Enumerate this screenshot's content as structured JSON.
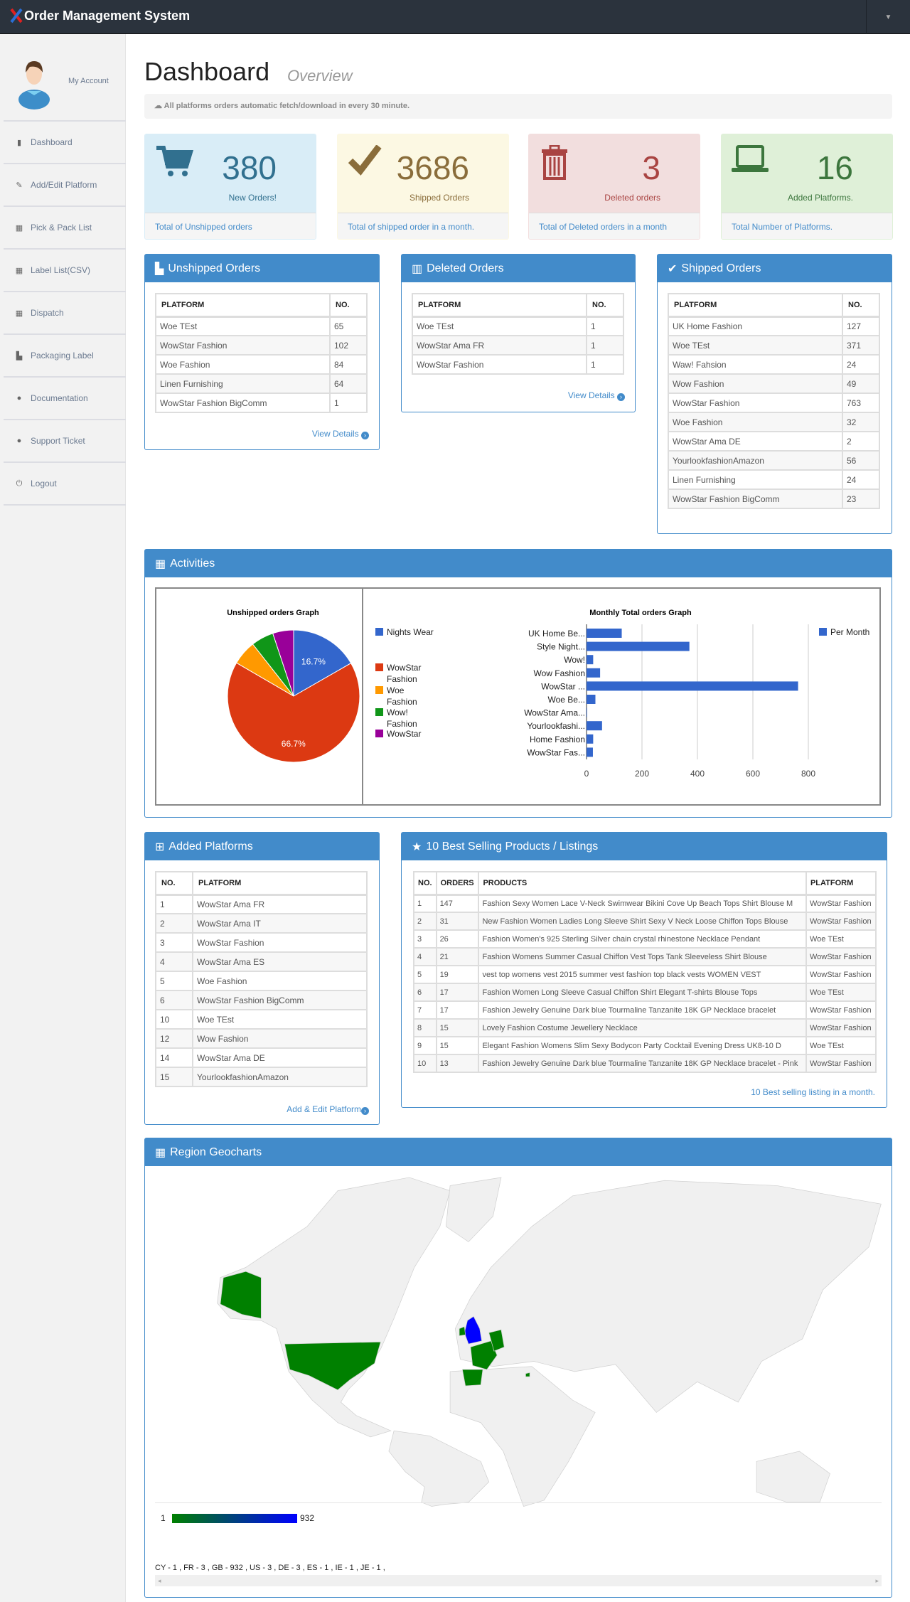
{
  "app": {
    "title": "Order Management System",
    "dropdown_icon": "caret-down-icon"
  },
  "sidebar": {
    "account_label": "My Account",
    "items": [
      {
        "label": "Dashboard",
        "icon": "bar-chart-icon"
      },
      {
        "label": "Add/Edit Platform",
        "icon": "edit-icon"
      },
      {
        "label": "Pick & Pack List",
        "icon": "grid-icon"
      },
      {
        "label": "Label List(CSV)",
        "icon": "grid-icon"
      },
      {
        "label": "Dispatch",
        "icon": "grid-icon"
      },
      {
        "label": "Packaging Label",
        "icon": "file-icon"
      },
      {
        "label": "Documentation",
        "icon": "user-icon"
      },
      {
        "label": "Support Ticket",
        "icon": "user-icon"
      },
      {
        "label": "Logout",
        "icon": "power-icon"
      }
    ]
  },
  "page": {
    "title": "Dashboard",
    "subtitle": "Overview",
    "notice": "All platforms orders automatic fetch/download in every 30 minute."
  },
  "stats": [
    {
      "value": "380",
      "label": "New Orders!",
      "footer": "Total of Unshipped orders",
      "color": "#31708f",
      "bg": "#d9edf7",
      "icon": "cart-icon"
    },
    {
      "value": "3686",
      "label": "Shipped Orders",
      "footer": "Total of shipped order in a month.",
      "color": "#8a6d3b",
      "bg": "#fcf8e3",
      "icon": "check-icon"
    },
    {
      "value": "3",
      "label": "Deleted orders",
      "footer": "Total of Deleted orders in a month",
      "color": "#a94442",
      "bg": "#f2dede",
      "icon": "trash-icon"
    },
    {
      "value": "16",
      "label": "Added Platforms.",
      "footer": "Total Number of Platforms.",
      "color": "#3c763d",
      "bg": "#dff0d8",
      "icon": "laptop-icon"
    }
  ],
  "unshipped": {
    "title": "Unshipped Orders",
    "headers": [
      "PLATFORM",
      "NO."
    ],
    "rows": [
      [
        "Woe TEst",
        "65"
      ],
      [
        "WowStar Fashion",
        "102"
      ],
      [
        "Woe Fashion",
        "84"
      ],
      [
        "Linen Furnishing",
        "64"
      ],
      [
        "WowStar Fashion BigComm",
        "1"
      ]
    ],
    "link": "View Details"
  },
  "deleted": {
    "title": "Deleted Orders",
    "headers": [
      "PLATFORM",
      "NO."
    ],
    "rows": [
      [
        "Woe TEst",
        "1"
      ],
      [
        "WowStar Ama FR",
        "1"
      ],
      [
        "WowStar Fashion",
        "1"
      ]
    ],
    "link": "View Details"
  },
  "shipped": {
    "title": "Shipped Orders",
    "headers": [
      "PLATFORM",
      "NO."
    ],
    "rows": [
      [
        "UK Home Fashion",
        "127"
      ],
      [
        "Woe TEst",
        "371"
      ],
      [
        "Waw! Fahsion",
        "24"
      ],
      [
        "Wow Fashion",
        "49"
      ],
      [
        "WowStar Fashion",
        "763"
      ],
      [
        "Woe Fashion",
        "32"
      ],
      [
        "WowStar Ama DE",
        "2"
      ],
      [
        "YourlookfashionAmazon",
        "56"
      ],
      [
        "Linen Furnishing",
        "24"
      ],
      [
        "WowStar Fashion BigComm",
        "23"
      ]
    ]
  },
  "activities": {
    "title": "Activities"
  },
  "chart_data": [
    {
      "type": "pie",
      "title": "Unshipped orders Graph",
      "legend": "right",
      "slices": [
        {
          "label": "Nights Wear",
          "value": 16.7,
          "color": "#3366cc",
          "shown": "16.7%"
        },
        {
          "label": "WowStar Fashion",
          "value": 66.7,
          "color": "#dc3912",
          "shown": "66.7%"
        },
        {
          "label": "Woe Fashion",
          "value": 6.0,
          "color": "#ff9900"
        },
        {
          "label": "Wow! Fashion",
          "value": 5.5,
          "color": "#109618"
        },
        {
          "label": "WowStar",
          "value": 5.1,
          "color": "#990099"
        }
      ]
    },
    {
      "type": "bar",
      "orientation": "horizontal",
      "title": "Monthly Total orders Graph",
      "legend": "right",
      "series_name": "Per Month",
      "color": "#3366cc",
      "categories": [
        "UK Home Be...",
        "Style Night...",
        "Wow!",
        "Wow Fashion",
        "WowStar ...",
        "Woe Be...",
        "WowStar Ama...",
        "Yourlookfashi...",
        "Home Fashion",
        "WowStar Fas..."
      ],
      "values": [
        127,
        371,
        24,
        49,
        763,
        32,
        2,
        56,
        24,
        23
      ],
      "xticks": [
        "0",
        "200",
        "400",
        "600",
        "800"
      ],
      "xlim": [
        0,
        800
      ]
    }
  ],
  "added": {
    "title": "Added Platforms",
    "headers": [
      "NO.",
      "PLATFORM"
    ],
    "rows": [
      [
        "1",
        "WowStar Ama FR"
      ],
      [
        "2",
        "WowStar Ama IT"
      ],
      [
        "3",
        "WowStar Fashion"
      ],
      [
        "4",
        "WowStar Ama ES"
      ],
      [
        "5",
        "Woe Fashion"
      ],
      [
        "6",
        "WowStar Fashion BigComm"
      ],
      [
        "10",
        "Woe TEst"
      ],
      [
        "12",
        "Wow Fashion"
      ],
      [
        "14",
        "WowStar Ama DE"
      ],
      [
        "15",
        "YourlookfashionAmazon"
      ]
    ],
    "link": "Add & Edit Platform"
  },
  "best": {
    "title": "10 Best Selling Products / Listings",
    "headers": [
      "NO.",
      "ORDERS",
      "PRODUCTS",
      "PLATFORM"
    ],
    "rows": [
      [
        "1",
        "147",
        "Fashion Sexy Women Lace V-Neck Swimwear Bikini Cove Up Beach Tops Shirt Blouse M",
        "WowStar Fashion"
      ],
      [
        "2",
        "31",
        "New Fashion Women Ladies Long Sleeve Shirt Sexy V Neck Loose Chiffon Tops Blouse",
        "WowStar Fashion"
      ],
      [
        "3",
        "26",
        "Fashion Women's 925 Sterling Silver chain crystal rhinestone Necklace Pendant",
        "Woe TEst"
      ],
      [
        "4",
        "21",
        "Fashion Womens Summer Casual Chiffon Vest Tops Tank Sleeveless Shirt Blouse",
        "WowStar Fashion"
      ],
      [
        "5",
        "19",
        "vest top womens vest 2015 summer vest fashion top black vests WOMEN VEST",
        "WowStar Fashion"
      ],
      [
        "6",
        "17",
        "Fashion Women Long Sleeve Casual Chiffon Shirt Elegant T-shirts Blouse Tops",
        "Woe TEst"
      ],
      [
        "7",
        "17",
        "Fashion Jewelry Genuine Dark blue Tourmaline Tanzanite 18K GP Necklace bracelet",
        "WowStar Fashion"
      ],
      [
        "8",
        "15",
        "Lovely Fashion Costume Jewellery Necklace",
        "WowStar Fashion"
      ],
      [
        "9",
        "15",
        "Elegant Fashion Womens Slim Sexy Bodycon Party Cocktail Evening Dress UK8-10 D",
        "Woe TEst"
      ],
      [
        "10",
        "13",
        "Fashion Jewelry Genuine Dark blue Tourmaline Tanzanite 18K GP Necklace bracelet - Pink",
        "WowStar Fashion"
      ]
    ],
    "link": "10 Best selling listing in a month."
  },
  "geo": {
    "title": "Region Geocharts",
    "legend_min": "1",
    "legend_max": "932",
    "min_color": "#008000",
    "max_color": "#0000ff",
    "summary": "CY - 1 , FR - 3 , GB - 932 , US - 3 , DE - 3 , ES - 1 , IE - 1 , JE - 1 ,"
  }
}
